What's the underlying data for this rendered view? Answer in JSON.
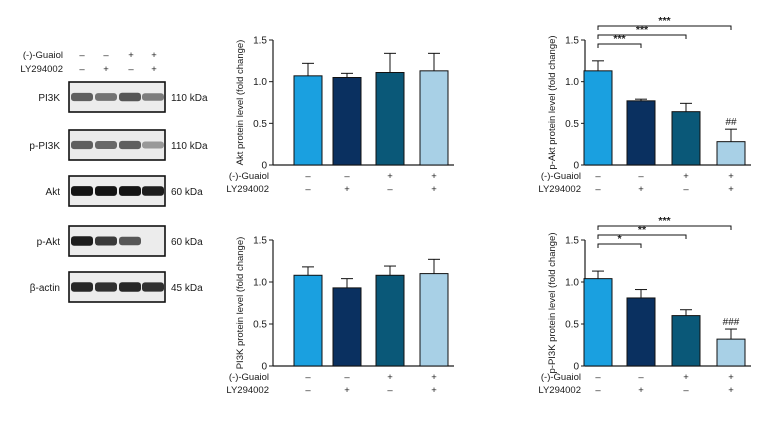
{
  "colors": {
    "ctrl": "#1aa0e0",
    "guaiol_only": "#0a3060",
    "both_only_guaiol": "#0a5878",
    "guaiol_ly": "#a8d0e6",
    "axis": "#1a1a1a"
  },
  "western_blot": {
    "treatments": [
      {
        "name": "(-)-Guaiol",
        "signs": [
          "–",
          "–",
          "+",
          "+"
        ]
      },
      {
        "name": "LY294002",
        "signs": [
          "–",
          "+",
          "–",
          "+"
        ]
      }
    ],
    "rows": [
      {
        "label": "PI3K",
        "kda": "110 kDa",
        "intensities": [
          0.55,
          0.45,
          0.6,
          0.4
        ]
      },
      {
        "label": "p-PI3K",
        "kda": "110 kDa",
        "intensities": [
          0.55,
          0.5,
          0.55,
          0.25
        ]
      },
      {
        "label": "Akt",
        "kda": "60 kDa",
        "intensities": [
          0.95,
          0.95,
          0.95,
          0.9
        ]
      },
      {
        "label": "p-Akt",
        "kda": "60 kDa",
        "intensities": [
          0.9,
          0.75,
          0.6,
          0.0
        ]
      },
      {
        "label": "β-actin",
        "kda": "45 kDa",
        "intensities": [
          0.85,
          0.8,
          0.85,
          0.8
        ]
      }
    ]
  },
  "chart_data": [
    {
      "type": "bar",
      "ylabel": "Akt protein level (fold change)",
      "ylim": [
        0,
        1.5
      ],
      "yticks": [
        "0",
        "0.5",
        "1.0",
        "1.5"
      ],
      "conditions": [
        {
          "name": "(-)-Guaiol",
          "signs": [
            "–",
            "–",
            "+",
            "+"
          ]
        },
        {
          "name": "LY294002",
          "signs": [
            "–",
            "+",
            "–",
            "+"
          ]
        }
      ],
      "values": [
        1.07,
        1.05,
        1.11,
        1.13
      ],
      "errors": [
        0.15,
        0.05,
        0.23,
        0.21
      ],
      "bar_labels": [
        "",
        "",
        "",
        ""
      ],
      "brackets": []
    },
    {
      "type": "bar",
      "ylabel": "p-Akt protein level (fold change)",
      "ylim": [
        0,
        1.5
      ],
      "yticks": [
        "0",
        "0.5",
        "1.0",
        "1.5"
      ],
      "conditions": [
        {
          "name": "(-)-Guaiol",
          "signs": [
            "–",
            "–",
            "+",
            "+"
          ]
        },
        {
          "name": "LY294002",
          "signs": [
            "–",
            "+",
            "–",
            "+"
          ]
        }
      ],
      "values": [
        1.13,
        0.77,
        0.64,
        0.28
      ],
      "errors": [
        0.12,
        0.02,
        0.1,
        0.15
      ],
      "bar_labels": [
        "",
        "",
        "",
        "##"
      ],
      "brackets": [
        {
          "from": 0,
          "to": 1,
          "label": "***"
        },
        {
          "from": 0,
          "to": 2,
          "label": "***"
        },
        {
          "from": 0,
          "to": 3,
          "label": "***"
        }
      ]
    },
    {
      "type": "bar",
      "ylabel": "PI3K protein level (fold change)",
      "ylim": [
        0,
        1.5
      ],
      "yticks": [
        "0",
        "0.5",
        "1.0",
        "1.5"
      ],
      "conditions": [
        {
          "name": "(-)-Guaiol",
          "signs": [
            "–",
            "–",
            "+",
            "+"
          ]
        },
        {
          "name": "LY294002",
          "signs": [
            "–",
            "+",
            "–",
            "+"
          ]
        }
      ],
      "values": [
        1.08,
        0.93,
        1.08,
        1.1
      ],
      "errors": [
        0.1,
        0.11,
        0.11,
        0.17
      ],
      "bar_labels": [
        "",
        "",
        "",
        ""
      ],
      "brackets": []
    },
    {
      "type": "bar",
      "ylabel": "p-PI3K protein level (fold change)",
      "ylim": [
        0,
        1.5
      ],
      "yticks": [
        "0",
        "0.5",
        "1.0",
        "1.5"
      ],
      "conditions": [
        {
          "name": "(-)-Guaiol",
          "signs": [
            "–",
            "–",
            "+",
            "+"
          ]
        },
        {
          "name": "LY294002",
          "signs": [
            "–",
            "+",
            "–",
            "+"
          ]
        }
      ],
      "values": [
        1.04,
        0.81,
        0.6,
        0.32
      ],
      "errors": [
        0.09,
        0.1,
        0.07,
        0.12
      ],
      "bar_labels": [
        "",
        "",
        "",
        "###"
      ],
      "brackets": [
        {
          "from": 0,
          "to": 1,
          "label": "*"
        },
        {
          "from": 0,
          "to": 2,
          "label": "**"
        },
        {
          "from": 0,
          "to": 3,
          "label": "***"
        }
      ]
    }
  ]
}
